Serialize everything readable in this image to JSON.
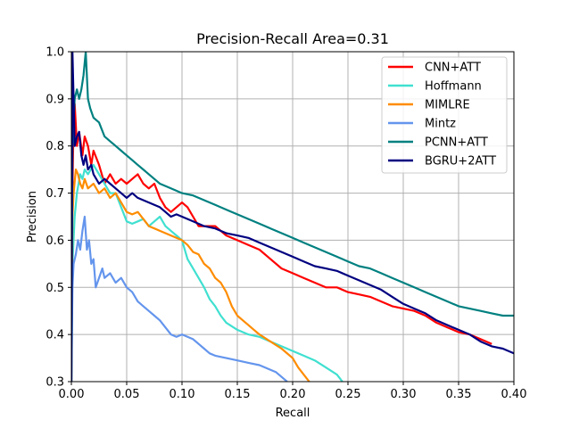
{
  "chart_data": {
    "type": "line",
    "title": "Precision-Recall Area=0.31",
    "xlabel": "Recall",
    "ylabel": "Precision",
    "xlim": [
      0.0,
      0.4
    ],
    "ylim": [
      0.3,
      1.0
    ],
    "xticks": [
      "0.00",
      "0.05",
      "0.10",
      "0.15",
      "0.20",
      "0.25",
      "0.30",
      "0.35",
      "0.40"
    ],
    "yticks": [
      "0.3",
      "0.4",
      "0.5",
      "0.6",
      "0.7",
      "0.8",
      "0.9",
      "1.0"
    ],
    "grid": true,
    "legend_position": "top-right",
    "series": [
      {
        "name": "CNN+ATT",
        "color": "#ff0000",
        "points": [
          [
            0.001,
            0.7
          ],
          [
            0.002,
            0.86
          ],
          [
            0.003,
            0.89
          ],
          [
            0.005,
            0.8
          ],
          [
            0.007,
            0.83
          ],
          [
            0.01,
            0.78
          ],
          [
            0.012,
            0.82
          ],
          [
            0.015,
            0.8
          ],
          [
            0.018,
            0.76
          ],
          [
            0.02,
            0.79
          ],
          [
            0.025,
            0.76
          ],
          [
            0.03,
            0.72
          ],
          [
            0.035,
            0.74
          ],
          [
            0.04,
            0.72
          ],
          [
            0.045,
            0.73
          ],
          [
            0.05,
            0.72
          ],
          [
            0.055,
            0.73
          ],
          [
            0.06,
            0.74
          ],
          [
            0.065,
            0.72
          ],
          [
            0.07,
            0.71
          ],
          [
            0.075,
            0.72
          ],
          [
            0.08,
            0.69
          ],
          [
            0.085,
            0.67
          ],
          [
            0.09,
            0.66
          ],
          [
            0.095,
            0.67
          ],
          [
            0.1,
            0.68
          ],
          [
            0.105,
            0.67
          ],
          [
            0.11,
            0.65
          ],
          [
            0.115,
            0.63
          ],
          [
            0.12,
            0.63
          ],
          [
            0.13,
            0.63
          ],
          [
            0.14,
            0.61
          ],
          [
            0.15,
            0.6
          ],
          [
            0.16,
            0.59
          ],
          [
            0.17,
            0.58
          ],
          [
            0.18,
            0.56
          ],
          [
            0.19,
            0.54
          ],
          [
            0.2,
            0.53
          ],
          [
            0.21,
            0.52
          ],
          [
            0.22,
            0.51
          ],
          [
            0.23,
            0.5
          ],
          [
            0.24,
            0.5
          ],
          [
            0.25,
            0.49
          ],
          [
            0.26,
            0.485
          ],
          [
            0.27,
            0.48
          ],
          [
            0.28,
            0.47
          ],
          [
            0.29,
            0.46
          ],
          [
            0.3,
            0.455
          ],
          [
            0.31,
            0.45
          ],
          [
            0.32,
            0.44
          ],
          [
            0.33,
            0.425
          ],
          [
            0.34,
            0.415
          ],
          [
            0.35,
            0.405
          ],
          [
            0.36,
            0.4
          ],
          [
            0.37,
            0.39
          ],
          [
            0.38,
            0.38
          ]
        ]
      },
      {
        "name": "Hoffmann",
        "color": "#40e0d0",
        "points": [
          [
            0.0,
            0.3
          ],
          [
            0.001,
            0.55
          ],
          [
            0.003,
            0.65
          ],
          [
            0.005,
            0.7
          ],
          [
            0.008,
            0.74
          ],
          [
            0.01,
            0.73
          ],
          [
            0.012,
            0.75
          ],
          [
            0.015,
            0.74
          ],
          [
            0.02,
            0.76
          ],
          [
            0.025,
            0.74
          ],
          [
            0.03,
            0.72
          ],
          [
            0.035,
            0.7
          ],
          [
            0.04,
            0.7
          ],
          [
            0.045,
            0.67
          ],
          [
            0.05,
            0.64
          ],
          [
            0.055,
            0.635
          ],
          [
            0.06,
            0.64
          ],
          [
            0.065,
            0.645
          ],
          [
            0.07,
            0.63
          ],
          [
            0.075,
            0.64
          ],
          [
            0.08,
            0.65
          ],
          [
            0.085,
            0.63
          ],
          [
            0.09,
            0.62
          ],
          [
            0.095,
            0.61
          ],
          [
            0.1,
            0.6
          ],
          [
            0.105,
            0.56
          ],
          [
            0.11,
            0.54
          ],
          [
            0.115,
            0.52
          ],
          [
            0.12,
            0.5
          ],
          [
            0.125,
            0.475
          ],
          [
            0.13,
            0.46
          ],
          [
            0.135,
            0.44
          ],
          [
            0.14,
            0.425
          ],
          [
            0.15,
            0.41
          ],
          [
            0.16,
            0.4
          ],
          [
            0.17,
            0.395
          ],
          [
            0.18,
            0.385
          ],
          [
            0.19,
            0.375
          ],
          [
            0.2,
            0.365
          ],
          [
            0.21,
            0.355
          ],
          [
            0.22,
            0.345
          ],
          [
            0.23,
            0.33
          ],
          [
            0.24,
            0.315
          ],
          [
            0.245,
            0.3
          ]
        ]
      },
      {
        "name": "MIMLRE",
        "color": "#ff8c00",
        "points": [
          [
            0.0,
            0.3
          ],
          [
            0.001,
            0.65
          ],
          [
            0.002,
            0.7
          ],
          [
            0.004,
            0.75
          ],
          [
            0.006,
            0.74
          ],
          [
            0.008,
            0.72
          ],
          [
            0.01,
            0.71
          ],
          [
            0.012,
            0.73
          ],
          [
            0.015,
            0.71
          ],
          [
            0.02,
            0.72
          ],
          [
            0.025,
            0.7
          ],
          [
            0.03,
            0.71
          ],
          [
            0.035,
            0.69
          ],
          [
            0.04,
            0.7
          ],
          [
            0.045,
            0.68
          ],
          [
            0.05,
            0.66
          ],
          [
            0.055,
            0.655
          ],
          [
            0.06,
            0.66
          ],
          [
            0.065,
            0.645
          ],
          [
            0.07,
            0.63
          ],
          [
            0.075,
            0.625
          ],
          [
            0.08,
            0.62
          ],
          [
            0.085,
            0.615
          ],
          [
            0.09,
            0.61
          ],
          [
            0.095,
            0.605
          ],
          [
            0.1,
            0.6
          ],
          [
            0.105,
            0.59
          ],
          [
            0.11,
            0.575
          ],
          [
            0.115,
            0.57
          ],
          [
            0.12,
            0.55
          ],
          [
            0.125,
            0.54
          ],
          [
            0.13,
            0.52
          ],
          [
            0.135,
            0.51
          ],
          [
            0.14,
            0.49
          ],
          [
            0.145,
            0.46
          ],
          [
            0.15,
            0.44
          ],
          [
            0.155,
            0.43
          ],
          [
            0.16,
            0.42
          ],
          [
            0.165,
            0.41
          ],
          [
            0.17,
            0.4
          ],
          [
            0.18,
            0.385
          ],
          [
            0.19,
            0.37
          ],
          [
            0.2,
            0.35
          ],
          [
            0.205,
            0.33
          ],
          [
            0.21,
            0.315
          ],
          [
            0.215,
            0.3
          ]
        ]
      },
      {
        "name": "Mintz",
        "color": "#6495ed",
        "points": [
          [
            0.0,
            0.3
          ],
          [
            0.001,
            0.5
          ],
          [
            0.002,
            0.55
          ],
          [
            0.004,
            0.57
          ],
          [
            0.006,
            0.6
          ],
          [
            0.008,
            0.58
          ],
          [
            0.01,
            0.62
          ],
          [
            0.012,
            0.65
          ],
          [
            0.014,
            0.58
          ],
          [
            0.016,
            0.6
          ],
          [
            0.018,
            0.55
          ],
          [
            0.02,
            0.56
          ],
          [
            0.022,
            0.5
          ],
          [
            0.025,
            0.52
          ],
          [
            0.028,
            0.54
          ],
          [
            0.03,
            0.52
          ],
          [
            0.035,
            0.53
          ],
          [
            0.04,
            0.51
          ],
          [
            0.045,
            0.52
          ],
          [
            0.05,
            0.5
          ],
          [
            0.055,
            0.49
          ],
          [
            0.06,
            0.47
          ],
          [
            0.065,
            0.46
          ],
          [
            0.07,
            0.45
          ],
          [
            0.075,
            0.44
          ],
          [
            0.08,
            0.43
          ],
          [
            0.085,
            0.415
          ],
          [
            0.09,
            0.4
          ],
          [
            0.095,
            0.395
          ],
          [
            0.1,
            0.4
          ],
          [
            0.105,
            0.395
          ],
          [
            0.11,
            0.39
          ],
          [
            0.115,
            0.38
          ],
          [
            0.12,
            0.37
          ],
          [
            0.125,
            0.36
          ],
          [
            0.13,
            0.355
          ],
          [
            0.14,
            0.35
          ],
          [
            0.15,
            0.345
          ],
          [
            0.16,
            0.34
          ],
          [
            0.17,
            0.335
          ],
          [
            0.175,
            0.33
          ],
          [
            0.18,
            0.325
          ],
          [
            0.185,
            0.32
          ],
          [
            0.19,
            0.31
          ],
          [
            0.195,
            0.3
          ]
        ]
      },
      {
        "name": "PCNN+ATT",
        "color": "#008080",
        "points": [
          [
            0.0,
            0.3
          ],
          [
            0.001,
            0.8
          ],
          [
            0.003,
            0.9
          ],
          [
            0.005,
            0.92
          ],
          [
            0.007,
            0.9
          ],
          [
            0.009,
            0.92
          ],
          [
            0.011,
            0.95
          ],
          [
            0.013,
            1.0
          ],
          [
            0.015,
            0.9
          ],
          [
            0.017,
            0.88
          ],
          [
            0.02,
            0.86
          ],
          [
            0.025,
            0.85
          ],
          [
            0.03,
            0.82
          ],
          [
            0.035,
            0.81
          ],
          [
            0.04,
            0.8
          ],
          [
            0.045,
            0.79
          ],
          [
            0.05,
            0.78
          ],
          [
            0.055,
            0.77
          ],
          [
            0.06,
            0.76
          ],
          [
            0.065,
            0.75
          ],
          [
            0.07,
            0.74
          ],
          [
            0.075,
            0.73
          ],
          [
            0.08,
            0.72
          ],
          [
            0.09,
            0.71
          ],
          [
            0.1,
            0.7
          ],
          [
            0.11,
            0.695
          ],
          [
            0.12,
            0.685
          ],
          [
            0.13,
            0.675
          ],
          [
            0.14,
            0.665
          ],
          [
            0.15,
            0.655
          ],
          [
            0.16,
            0.645
          ],
          [
            0.17,
            0.635
          ],
          [
            0.18,
            0.625
          ],
          [
            0.19,
            0.615
          ],
          [
            0.2,
            0.605
          ],
          [
            0.21,
            0.595
          ],
          [
            0.22,
            0.585
          ],
          [
            0.23,
            0.575
          ],
          [
            0.24,
            0.565
          ],
          [
            0.25,
            0.555
          ],
          [
            0.26,
            0.545
          ],
          [
            0.27,
            0.54
          ],
          [
            0.28,
            0.53
          ],
          [
            0.29,
            0.52
          ],
          [
            0.3,
            0.51
          ],
          [
            0.31,
            0.5
          ],
          [
            0.32,
            0.49
          ],
          [
            0.33,
            0.48
          ],
          [
            0.34,
            0.47
          ],
          [
            0.35,
            0.46
          ],
          [
            0.36,
            0.455
          ],
          [
            0.37,
            0.45
          ],
          [
            0.38,
            0.445
          ],
          [
            0.39,
            0.44
          ],
          [
            0.4,
            0.44
          ]
        ]
      },
      {
        "name": "BGRU+2ATT",
        "color": "#000080",
        "points": [
          [
            0.0,
            0.3
          ],
          [
            0.001,
            1.0
          ],
          [
            0.002,
            0.9
          ],
          [
            0.003,
            0.8
          ],
          [
            0.005,
            0.82
          ],
          [
            0.007,
            0.83
          ],
          [
            0.009,
            0.78
          ],
          [
            0.011,
            0.76
          ],
          [
            0.013,
            0.78
          ],
          [
            0.015,
            0.75
          ],
          [
            0.018,
            0.76
          ],
          [
            0.02,
            0.74
          ],
          [
            0.025,
            0.72
          ],
          [
            0.03,
            0.73
          ],
          [
            0.035,
            0.72
          ],
          [
            0.04,
            0.71
          ],
          [
            0.045,
            0.7
          ],
          [
            0.05,
            0.69
          ],
          [
            0.055,
            0.7
          ],
          [
            0.06,
            0.69
          ],
          [
            0.065,
            0.685
          ],
          [
            0.07,
            0.68
          ],
          [
            0.075,
            0.675
          ],
          [
            0.08,
            0.67
          ],
          [
            0.085,
            0.66
          ],
          [
            0.09,
            0.65
          ],
          [
            0.095,
            0.655
          ],
          [
            0.1,
            0.65
          ],
          [
            0.11,
            0.64
          ],
          [
            0.12,
            0.63
          ],
          [
            0.13,
            0.625
          ],
          [
            0.14,
            0.615
          ],
          [
            0.15,
            0.61
          ],
          [
            0.16,
            0.605
          ],
          [
            0.17,
            0.595
          ],
          [
            0.18,
            0.585
          ],
          [
            0.19,
            0.575
          ],
          [
            0.2,
            0.565
          ],
          [
            0.21,
            0.555
          ],
          [
            0.22,
            0.545
          ],
          [
            0.23,
            0.54
          ],
          [
            0.24,
            0.535
          ],
          [
            0.25,
            0.525
          ],
          [
            0.26,
            0.515
          ],
          [
            0.27,
            0.505
          ],
          [
            0.28,
            0.495
          ],
          [
            0.29,
            0.48
          ],
          [
            0.3,
            0.465
          ],
          [
            0.31,
            0.455
          ],
          [
            0.32,
            0.445
          ],
          [
            0.33,
            0.43
          ],
          [
            0.34,
            0.42
          ],
          [
            0.35,
            0.41
          ],
          [
            0.36,
            0.4
          ],
          [
            0.37,
            0.385
          ],
          [
            0.38,
            0.375
          ],
          [
            0.39,
            0.37
          ],
          [
            0.4,
            0.36
          ]
        ]
      }
    ]
  }
}
